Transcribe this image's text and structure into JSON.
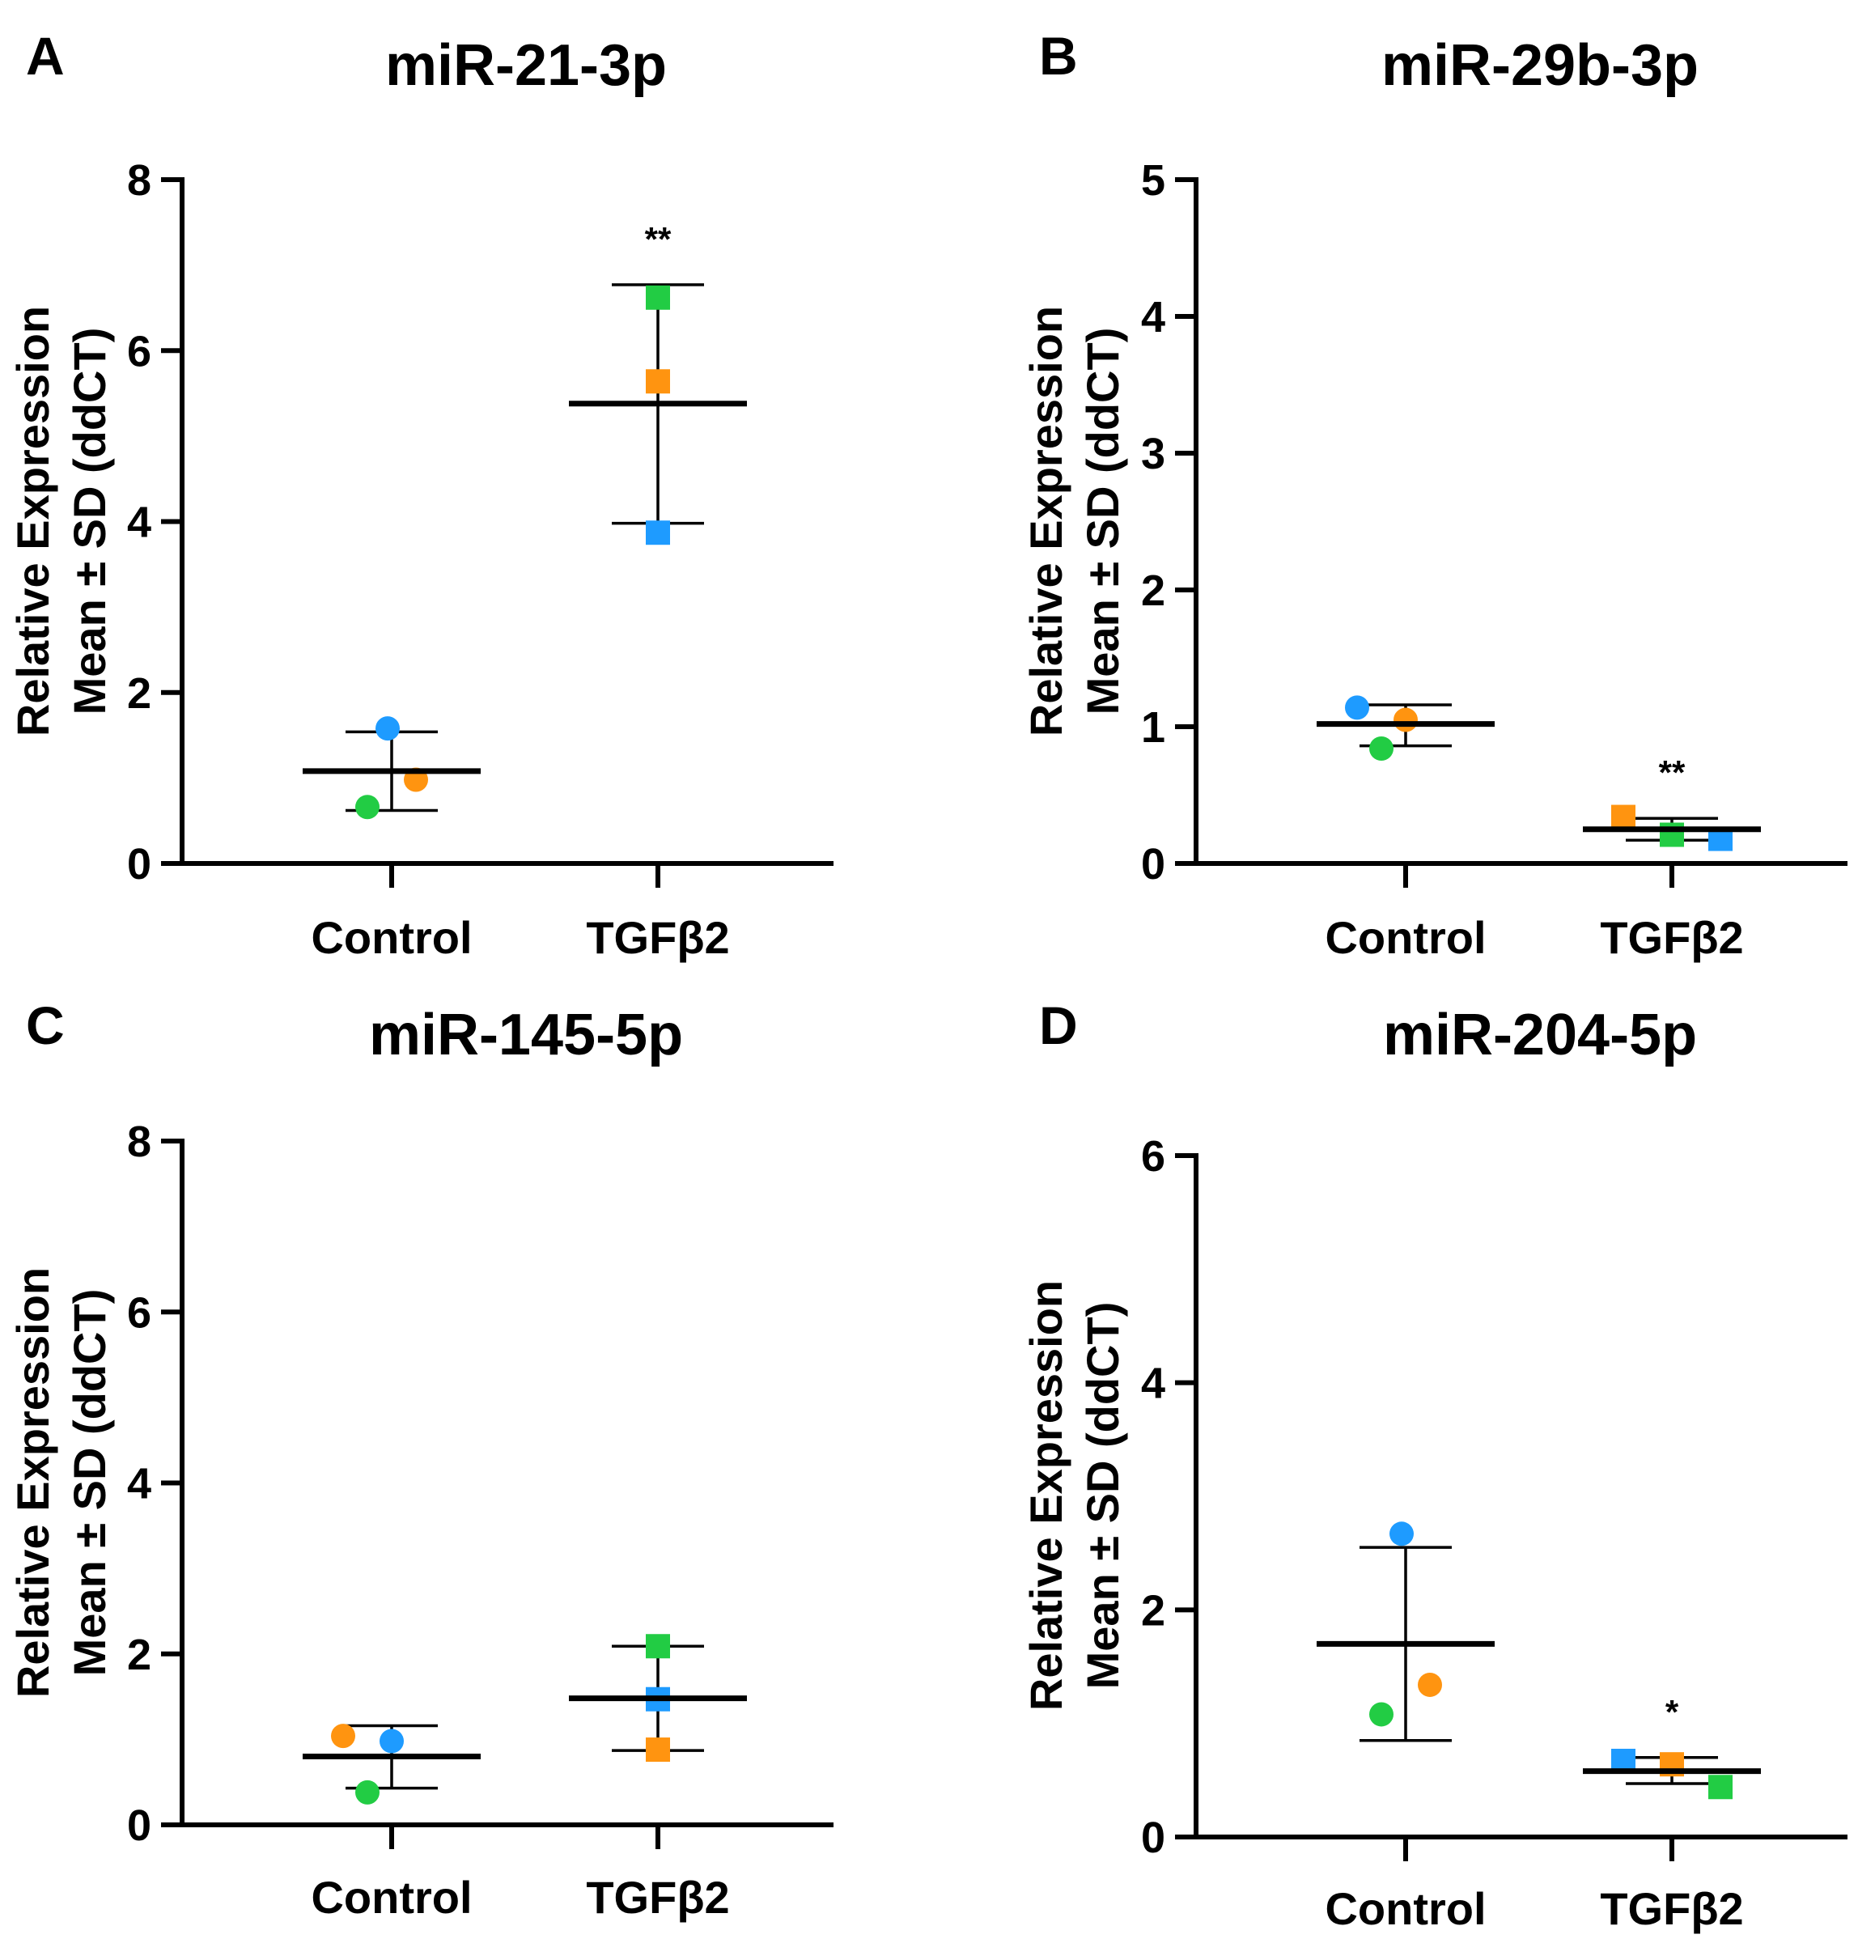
{
  "figure": {
    "background": "#ffffff"
  },
  "chart_data": [
    {
      "letter": "A",
      "title": "miR-21-3p",
      "type": "scatter",
      "ylabel_lines": [
        "Relative Expression",
        "Mean ± SD (ddCT)"
      ],
      "ylim": [
        0,
        8
      ],
      "yticks": [
        0,
        2,
        4,
        6,
        8
      ],
      "groups": [
        {
          "name": "Control",
          "marker": "circle",
          "mean": 1.08,
          "sd_low": 0.62,
          "sd_high": 1.54,
          "significance": "",
          "points": [
            {
              "value": 1.58,
              "color": "#1e9bff"
            },
            {
              "value": 0.98,
              "color": "#ff9410"
            },
            {
              "value": 0.66,
              "color": "#22cc44"
            }
          ]
        },
        {
          "name": "TGFβ2",
          "marker": "square",
          "mean": 5.38,
          "sd_low": 3.98,
          "sd_high": 6.77,
          "significance": "**",
          "points": [
            {
              "value": 6.62,
              "color": "#22cc44"
            },
            {
              "value": 5.64,
              "color": "#ff9410"
            },
            {
              "value": 3.87,
              "color": "#1e9bff"
            }
          ]
        }
      ]
    },
    {
      "letter": "B",
      "title": "miR-29b-3p",
      "type": "scatter",
      "ylabel_lines": [
        "Relative Expression",
        "Mean ± SD (ddCT)"
      ],
      "ylim": [
        0,
        5
      ],
      "yticks": [
        0,
        1,
        2,
        3,
        4,
        5
      ],
      "groups": [
        {
          "name": "Control",
          "marker": "circle",
          "mean": 1.02,
          "sd_low": 0.86,
          "sd_high": 1.16,
          "significance": "",
          "points": [
            {
              "value": 1.14,
              "color": "#1e9bff"
            },
            {
              "value": 1.05,
              "color": "#ff9410"
            },
            {
              "value": 0.84,
              "color": "#22cc44"
            }
          ]
        },
        {
          "name": "TGFβ2",
          "marker": "square",
          "mean": 0.25,
          "sd_low": 0.17,
          "sd_high": 0.33,
          "significance": "**",
          "points": [
            {
              "value": 0.34,
              "color": "#ff9410"
            },
            {
              "value": 0.21,
              "color": "#22cc44"
            },
            {
              "value": 0.18,
              "color": "#1e9bff"
            }
          ]
        }
      ]
    },
    {
      "letter": "C",
      "title": "miR-145-5p",
      "type": "scatter",
      "ylabel_lines": [
        "Relative Expression",
        "Mean ± SD (ddCT)"
      ],
      "ylim": [
        0,
        8
      ],
      "yticks": [
        0,
        2,
        4,
        6,
        8
      ],
      "groups": [
        {
          "name": "Control",
          "marker": "circle",
          "mean": 0.8,
          "sd_low": 0.43,
          "sd_high": 1.16,
          "significance": "",
          "points": [
            {
              "value": 1.04,
              "color": "#ff9410"
            },
            {
              "value": 0.98,
              "color": "#1e9bff"
            },
            {
              "value": 0.38,
              "color": "#22cc44"
            }
          ]
        },
        {
          "name": "TGFβ2",
          "marker": "square",
          "mean": 1.48,
          "sd_low": 0.87,
          "sd_high": 2.09,
          "significance": "",
          "points": [
            {
              "value": 2.09,
              "color": "#22cc44"
            },
            {
              "value": 1.47,
              "color": "#1e9bff"
            },
            {
              "value": 0.88,
              "color": "#ff9410"
            }
          ]
        }
      ]
    },
    {
      "letter": "D",
      "title": "miR-204-5p",
      "type": "scatter",
      "ylabel_lines": [
        "Relative Expression",
        "Mean ± SD (ddCT)"
      ],
      "ylim": [
        0,
        6
      ],
      "yticks": [
        0,
        2,
        4,
        6
      ],
      "groups": [
        {
          "name": "Control",
          "marker": "circle",
          "mean": 1.7,
          "sd_low": 0.85,
          "sd_high": 2.55,
          "significance": "",
          "points": [
            {
              "value": 2.67,
              "color": "#1e9bff"
            },
            {
              "value": 1.34,
              "color": "#ff9410"
            },
            {
              "value": 1.08,
              "color": "#22cc44"
            }
          ]
        },
        {
          "name": "TGFβ2",
          "marker": "square",
          "mean": 0.58,
          "sd_low": 0.47,
          "sd_high": 0.7,
          "significance": "*",
          "points": [
            {
              "value": 0.67,
              "color": "#1e9bff"
            },
            {
              "value": 0.64,
              "color": "#ff9410"
            },
            {
              "value": 0.44,
              "color": "#22cc44"
            }
          ]
        }
      ]
    }
  ]
}
